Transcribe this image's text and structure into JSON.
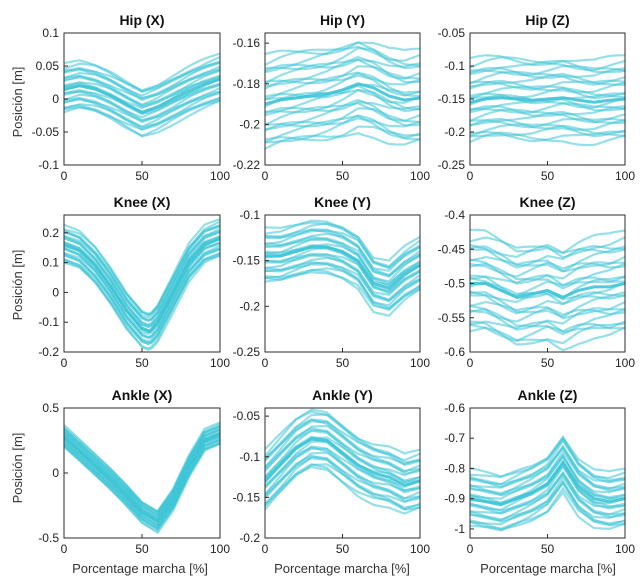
{
  "figure": {
    "ylabel": "Posición [m]",
    "xlabel": "Porcentage marcha [%]",
    "line_color": "#3ec4d6"
  },
  "chart_data": [
    {
      "type": "line",
      "title": "Hip (X)",
      "xlabel": "",
      "ylabel": "Posición [m]",
      "xlim": [
        0,
        100
      ],
      "ylim": [
        -0.1,
        0.1
      ],
      "xticks": [
        "0",
        "50",
        "100"
      ],
      "yticks": [
        "-0.1",
        "-0.05",
        "0",
        "0.05",
        "0.1"
      ],
      "x": [
        0,
        10,
        20,
        30,
        40,
        50,
        60,
        70,
        80,
        90,
        100
      ],
      "series": [
        {
          "values": [
            0.015,
            0.02,
            0.015,
            0.005,
            -0.008,
            -0.02,
            -0.012,
            0.0,
            0.012,
            0.022,
            0.03
          ]
        }
      ],
      "spread": [
        0.035,
        0.035,
        0.035,
        0.035,
        0.035,
        0.035,
        0.035,
        0.035,
        0.035,
        0.035,
        0.035
      ]
    },
    {
      "type": "line",
      "title": "Hip (Y)",
      "xlabel": "",
      "ylabel": "",
      "xlim": [
        0,
        100
      ],
      "ylim": [
        -0.22,
        -0.155
      ],
      "xticks": [
        "0",
        "50",
        "100"
      ],
      "yticks": [
        "-0.22",
        "-0.2",
        "-0.18",
        "-0.16"
      ],
      "x": [
        0,
        10,
        20,
        30,
        40,
        50,
        60,
        70,
        80,
        90,
        100
      ],
      "series": [
        {
          "values": [
            -0.19,
            -0.188,
            -0.187,
            -0.186,
            -0.185,
            -0.183,
            -0.18,
            -0.182,
            -0.186,
            -0.188,
            -0.187
          ]
        }
      ],
      "spread": [
        0.022,
        0.022,
        0.022,
        0.022,
        0.022,
        0.022,
        0.022,
        0.022,
        0.022,
        0.022,
        0.022
      ]
    },
    {
      "type": "line",
      "title": "Hip (Z)",
      "xlabel": "",
      "ylabel": "",
      "xlim": [
        0,
        100
      ],
      "ylim": [
        -0.25,
        -0.05
      ],
      "xticks": [
        "0",
        "50",
        "100"
      ],
      "yticks": [
        "-0.25",
        "-0.2",
        "-0.15",
        "-0.1",
        "-0.05"
      ],
      "x": [
        0,
        10,
        20,
        30,
        40,
        50,
        60,
        70,
        80,
        90,
        100
      ],
      "series": [
        {
          "values": [
            -0.155,
            -0.15,
            -0.148,
            -0.15,
            -0.152,
            -0.15,
            -0.148,
            -0.152,
            -0.155,
            -0.152,
            -0.15
          ]
        }
      ],
      "spread": [
        0.06,
        0.06,
        0.06,
        0.06,
        0.06,
        0.06,
        0.06,
        0.06,
        0.06,
        0.06,
        0.06
      ]
    },
    {
      "type": "line",
      "title": "Knee (X)",
      "xlabel": "",
      "ylabel": "Posición [m]",
      "xlim": [
        0,
        100
      ],
      "ylim": [
        -0.2,
        0.26
      ],
      "xticks": [
        "0",
        "50",
        "100"
      ],
      "yticks": [
        "-0.2",
        "-0.1",
        "0",
        "0.1",
        "0.2"
      ],
      "x": [
        0,
        10,
        20,
        30,
        40,
        50,
        55,
        60,
        70,
        80,
        90,
        100
      ],
      "series": [
        {
          "values": [
            0.16,
            0.14,
            0.09,
            0.02,
            -0.06,
            -0.12,
            -0.13,
            -0.1,
            0.0,
            0.1,
            0.16,
            0.18
          ]
        }
      ],
      "spread": [
        0.06,
        0.06,
        0.06,
        0.06,
        0.06,
        0.06,
        0.06,
        0.06,
        0.06,
        0.06,
        0.06,
        0.06
      ]
    },
    {
      "type": "line",
      "title": "Knee (Y)",
      "xlabel": "",
      "ylabel": "",
      "xlim": [
        0,
        100
      ],
      "ylim": [
        -0.25,
        -0.1
      ],
      "xticks": [
        "0",
        "50",
        "100"
      ],
      "yticks": [
        "-0.25",
        "-0.2",
        "-0.15",
        "-0.1"
      ],
      "x": [
        0,
        10,
        20,
        30,
        40,
        50,
        60,
        70,
        80,
        90,
        100
      ],
      "series": [
        {
          "values": [
            -0.145,
            -0.145,
            -0.14,
            -0.135,
            -0.135,
            -0.14,
            -0.15,
            -0.175,
            -0.18,
            -0.165,
            -0.155
          ]
        }
      ],
      "spread": [
        0.028,
        0.028,
        0.028,
        0.028,
        0.028,
        0.028,
        0.028,
        0.028,
        0.028,
        0.028,
        0.028
      ]
    },
    {
      "type": "line",
      "title": "Knee (Z)",
      "xlabel": "",
      "ylabel": "",
      "xlim": [
        0,
        100
      ],
      "ylim": [
        -0.6,
        -0.4
      ],
      "xticks": [
        "0",
        "50",
        "100"
      ],
      "yticks": [
        "-0.6",
        "-0.55",
        "-0.5",
        "-0.45",
        "-0.4"
      ],
      "x": [
        0,
        10,
        20,
        30,
        40,
        50,
        60,
        70,
        80,
        90,
        100
      ],
      "series": [
        {
          "values": [
            -0.5,
            -0.5,
            -0.51,
            -0.52,
            -0.515,
            -0.51,
            -0.52,
            -0.51,
            -0.505,
            -0.505,
            -0.5
          ]
        }
      ],
      "spread": [
        0.07,
        0.07,
        0.07,
        0.07,
        0.07,
        0.07,
        0.07,
        0.07,
        0.07,
        0.07,
        0.07
      ]
    },
    {
      "type": "line",
      "title": "Ankle (X)",
      "xlabel": "Porcentage marcha [%]",
      "ylabel": "Posición [m]",
      "xlim": [
        0,
        100
      ],
      "ylim": [
        -0.5,
        0.5
      ],
      "xticks": [
        "0",
        "50",
        "100"
      ],
      "yticks": [
        "-0.5",
        "0",
        "0.5"
      ],
      "x": [
        0,
        10,
        20,
        30,
        40,
        50,
        60,
        70,
        80,
        90,
        100
      ],
      "series": [
        {
          "values": [
            0.28,
            0.17,
            0.06,
            -0.05,
            -0.17,
            -0.3,
            -0.37,
            -0.2,
            0.05,
            0.25,
            0.3
          ]
        }
      ],
      "spread": [
        0.08,
        0.08,
        0.08,
        0.08,
        0.08,
        0.08,
        0.08,
        0.08,
        0.08,
        0.08,
        0.08
      ]
    },
    {
      "type": "line",
      "title": "Ankle (Y)",
      "xlabel": "Porcentage marcha [%]",
      "ylabel": "",
      "xlim": [
        0,
        100
      ],
      "ylim": [
        -0.2,
        -0.04
      ],
      "xticks": [
        "0",
        "50",
        "100"
      ],
      "yticks": [
        "-0.2",
        "-0.15",
        "-0.1",
        "-0.05"
      ],
      "x": [
        0,
        10,
        20,
        30,
        40,
        50,
        60,
        70,
        80,
        90,
        100
      ],
      "series": [
        {
          "values": [
            -0.13,
            -0.11,
            -0.09,
            -0.078,
            -0.08,
            -0.095,
            -0.11,
            -0.12,
            -0.125,
            -0.135,
            -0.13
          ]
        }
      ],
      "spread": [
        0.035,
        0.035,
        0.035,
        0.035,
        0.035,
        0.035,
        0.035,
        0.035,
        0.035,
        0.035,
        0.035
      ]
    },
    {
      "type": "line",
      "title": "Ankle (Z)",
      "xlabel": "Porcentage marcha [%]",
      "ylabel": "",
      "xlim": [
        0,
        100
      ],
      "ylim": [
        -1.03,
        -0.6
      ],
      "xticks": [
        "0",
        "50",
        "100"
      ],
      "yticks": [
        "-1",
        "-0.9",
        "-0.8",
        "-0.7",
        "-0.6"
      ],
      "x": [
        0,
        10,
        20,
        30,
        40,
        50,
        60,
        70,
        80,
        90,
        100
      ],
      "series": [
        {
          "values": [
            -0.9,
            -0.91,
            -0.92,
            -0.9,
            -0.88,
            -0.85,
            -0.78,
            -0.86,
            -0.9,
            -0.91,
            -0.9
          ]
        }
      ],
      "spread": [
        0.09,
        0.09,
        0.09,
        0.09,
        0.09,
        0.09,
        0.09,
        0.09,
        0.09,
        0.09,
        0.09
      ]
    }
  ]
}
